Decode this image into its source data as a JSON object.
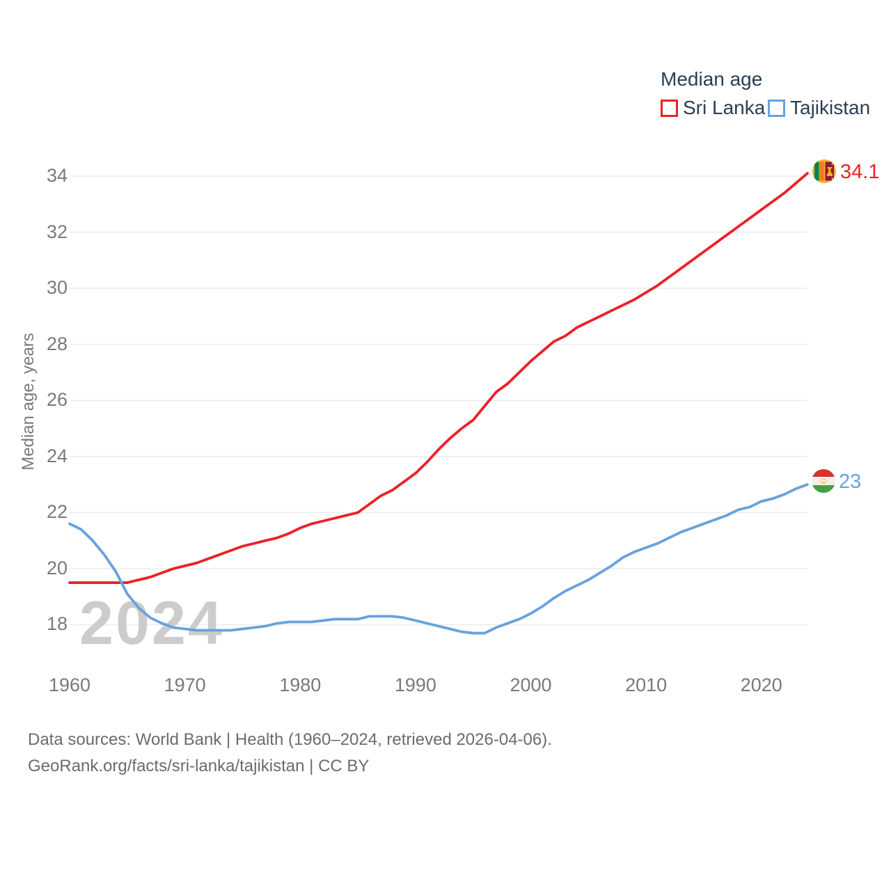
{
  "legend": {
    "title": "Median age",
    "items": [
      {
        "label": "Sri Lanka",
        "color": "#ec2127"
      },
      {
        "label": "Tajikistan",
        "color": "#68a2dd"
      }
    ]
  },
  "watermark": "2024",
  "y_axis": {
    "label": "Median age, years",
    "ticks": [
      18,
      20,
      22,
      24,
      26,
      28,
      30,
      32,
      34
    ]
  },
  "x_axis": {
    "ticks": [
      1960,
      1970,
      1980,
      1990,
      2000,
      2010,
      2020
    ]
  },
  "end_labels": [
    {
      "series": "Sri Lanka",
      "value": "34.1",
      "color": "#ec2127",
      "flag_icon": "sri-lanka-flag-icon"
    },
    {
      "series": "Tajikistan",
      "value": "23",
      "color": "#68a2dd",
      "flag_icon": "tajikistan-flag-icon"
    }
  ],
  "footer": {
    "line1": "Data sources: World Bank | Health (1960–2024, retrieved 2026-04-06).",
    "line2": "GeoRank.org/facts/sri-lanka/tajikistan | CC BY"
  },
  "chart_data": {
    "type": "line",
    "title": "Median age",
    "xlabel": "",
    "ylabel": "Median age, years",
    "xlim": [
      1960,
      2024
    ],
    "ylim": [
      17,
      35
    ],
    "grid": true,
    "legend_position": "top-right",
    "x": [
      1960,
      1961,
      1962,
      1963,
      1964,
      1965,
      1966,
      1967,
      1968,
      1969,
      1970,
      1971,
      1972,
      1973,
      1974,
      1975,
      1976,
      1977,
      1978,
      1979,
      1980,
      1981,
      1982,
      1983,
      1984,
      1985,
      1986,
      1987,
      1988,
      1989,
      1990,
      1991,
      1992,
      1993,
      1994,
      1995,
      1996,
      1997,
      1998,
      1999,
      2000,
      2001,
      2002,
      2003,
      2004,
      2005,
      2006,
      2007,
      2008,
      2009,
      2010,
      2011,
      2012,
      2013,
      2014,
      2015,
      2016,
      2017,
      2018,
      2019,
      2020,
      2021,
      2022,
      2023,
      2024
    ],
    "series": [
      {
        "name": "Sri Lanka",
        "color": "#ec2127",
        "end_value": 34.1,
        "values": [
          19.5,
          19.5,
          19.5,
          19.5,
          19.5,
          19.5,
          19.6,
          19.7,
          19.85,
          20.0,
          20.1,
          20.2,
          20.35,
          20.5,
          20.65,
          20.8,
          20.9,
          21.0,
          21.1,
          21.25,
          21.45,
          21.6,
          21.7,
          21.8,
          21.9,
          22.0,
          22.3,
          22.6,
          22.8,
          23.1,
          23.4,
          23.8,
          24.25,
          24.65,
          25.0,
          25.3,
          25.8,
          26.3,
          26.6,
          27.0,
          27.4,
          27.75,
          28.1,
          28.3,
          28.6,
          28.8,
          29.0,
          29.2,
          29.4,
          29.6,
          29.85,
          30.1,
          30.4,
          30.7,
          31.0,
          31.3,
          31.6,
          31.9,
          32.2,
          32.5,
          32.8,
          33.1,
          33.4,
          33.75,
          34.1
        ]
      },
      {
        "name": "Tajikistan",
        "color": "#68a2dd",
        "end_value": 23,
        "values": [
          21.6,
          21.4,
          21.0,
          20.5,
          19.9,
          19.1,
          18.6,
          18.25,
          18.05,
          17.9,
          17.85,
          17.8,
          17.8,
          17.8,
          17.8,
          17.85,
          17.9,
          17.95,
          18.05,
          18.1,
          18.1,
          18.1,
          18.15,
          18.2,
          18.2,
          18.2,
          18.3,
          18.3,
          18.3,
          18.25,
          18.15,
          18.05,
          17.95,
          17.85,
          17.75,
          17.7,
          17.7,
          17.9,
          18.05,
          18.2,
          18.4,
          18.65,
          18.95,
          19.2,
          19.4,
          19.6,
          19.85,
          20.1,
          20.4,
          20.6,
          20.75,
          20.9,
          21.1,
          21.3,
          21.45,
          21.6,
          21.75,
          21.9,
          22.1,
          22.2,
          22.4,
          22.5,
          22.65,
          22.85,
          23.0
        ]
      }
    ]
  }
}
